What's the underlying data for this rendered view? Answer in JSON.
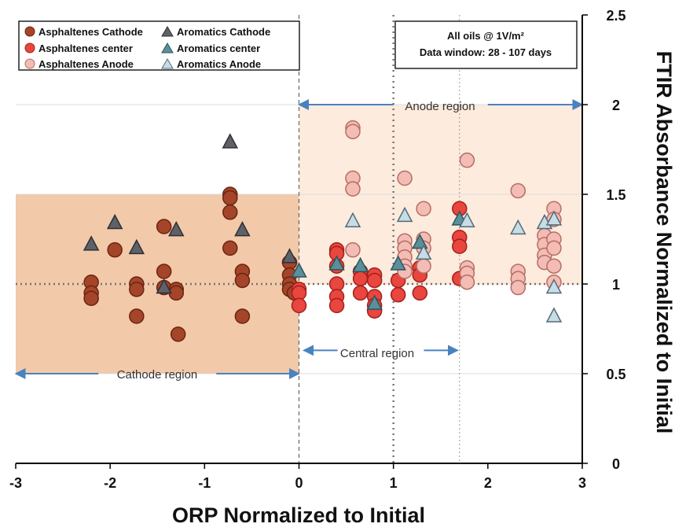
{
  "chart_data": {
    "type": "scatter",
    "xlabel": "ORP Normalized to Initial",
    "ylabel": "FTIR Absorbance Normalized to Initial",
    "xlim": [
      -3,
      3
    ],
    "ylim": [
      0,
      2.5
    ],
    "x_ticks": [
      "-3",
      "-2",
      "-1",
      "0",
      "1",
      "2",
      "3"
    ],
    "y_ticks": [
      "0",
      "0.5",
      "1",
      "1.5",
      "2",
      "2.5"
    ],
    "y_axis_side": "right",
    "grid": "horizontal",
    "legend_position": "top-left",
    "info_box": {
      "line1": "All oils @ 1V/m²",
      "line2": "Data window: 28  - 107 days"
    },
    "regions": [
      {
        "label": "Cathode region",
        "x_range": [
          -3,
          0
        ],
        "y_range": [
          0.5,
          1.5
        ],
        "fill": "#f2c9a9"
      },
      {
        "label": "Anode region",
        "x_range": [
          0,
          3
        ],
        "y_range": [
          1.0,
          2.0
        ],
        "fill": "#fdebdd"
      },
      {
        "label": "Central region",
        "x_range": [
          0,
          1.7
        ],
        "y_range": null,
        "fill": null
      }
    ],
    "reference_lines": {
      "y_dotted": 1.0,
      "x_dashed": [
        0
      ],
      "x_dotted_thick": [
        1.0
      ],
      "x_dotted_thin": [
        1.7
      ]
    },
    "series": [
      {
        "name": "Asphaltenes Cathode",
        "marker": "circle",
        "color": "#a4452a",
        "edge": "#6b2510",
        "points": [
          [
            -2.2,
            1.01
          ],
          [
            -2.2,
            0.95
          ],
          [
            -2.2,
            0.92
          ],
          [
            -1.95,
            1.19
          ],
          [
            -1.72,
            1.0
          ],
          [
            -1.72,
            0.97
          ],
          [
            -1.72,
            0.82
          ],
          [
            -1.43,
            1.32
          ],
          [
            -1.43,
            1.07
          ],
          [
            -1.43,
            0.98
          ],
          [
            -1.3,
            0.97
          ],
          [
            -1.3,
            0.95
          ],
          [
            -1.28,
            0.72
          ],
          [
            -0.73,
            1.5
          ],
          [
            -0.73,
            1.48
          ],
          [
            -0.73,
            1.4
          ],
          [
            -0.73,
            1.2
          ],
          [
            -0.6,
            1.07
          ],
          [
            -0.6,
            1.02
          ],
          [
            -0.6,
            0.82
          ],
          [
            -0.1,
            1.12
          ],
          [
            -0.1,
            1.05
          ],
          [
            -0.1,
            1.0
          ],
          [
            -0.1,
            0.97
          ],
          [
            -0.05,
            0.95
          ]
        ]
      },
      {
        "name": "Asphaltenes center",
        "marker": "circle",
        "color": "#e8463e",
        "edge": "#a3201c",
        "points": [
          [
            0.0,
            0.97
          ],
          [
            0.0,
            0.95
          ],
          [
            0.0,
            0.88
          ],
          [
            0.4,
            1.19
          ],
          [
            0.4,
            1.17
          ],
          [
            0.4,
            1.1
          ],
          [
            0.4,
            1.0
          ],
          [
            0.4,
            0.93
          ],
          [
            0.4,
            0.88
          ],
          [
            0.65,
            1.07
          ],
          [
            0.65,
            1.03
          ],
          [
            0.65,
            0.95
          ],
          [
            0.8,
            1.05
          ],
          [
            0.8,
            1.02
          ],
          [
            0.8,
            0.93
          ],
          [
            0.8,
            0.88
          ],
          [
            0.8,
            0.85
          ],
          [
            1.05,
            1.02
          ],
          [
            1.05,
            0.94
          ],
          [
            1.28,
            1.09
          ],
          [
            1.28,
            1.05
          ],
          [
            1.28,
            0.95
          ],
          [
            1.7,
            1.42
          ],
          [
            1.7,
            1.26
          ],
          [
            1.7,
            1.21
          ],
          [
            1.7,
            1.03
          ]
        ]
      },
      {
        "name": "Asphaltenes Anode",
        "marker": "circle",
        "color": "#f3bcb5",
        "edge": "#b66d63",
        "points": [
          [
            0.57,
            1.87
          ],
          [
            0.57,
            1.85
          ],
          [
            0.57,
            1.59
          ],
          [
            0.57,
            1.53
          ],
          [
            0.57,
            1.19
          ],
          [
            1.12,
            1.59
          ],
          [
            1.12,
            1.24
          ],
          [
            1.12,
            1.2
          ],
          [
            1.12,
            1.15
          ],
          [
            1.12,
            1.1
          ],
          [
            1.12,
            1.07
          ],
          [
            1.32,
            1.42
          ],
          [
            1.32,
            1.25
          ],
          [
            1.32,
            1.2
          ],
          [
            1.32,
            1.1
          ],
          [
            1.78,
            1.69
          ],
          [
            1.78,
            1.09
          ],
          [
            1.78,
            1.06
          ],
          [
            1.78,
            1.01
          ],
          [
            2.32,
            1.52
          ],
          [
            2.32,
            1.07
          ],
          [
            2.32,
            1.03
          ],
          [
            2.32,
            0.98
          ],
          [
            2.6,
            1.27
          ],
          [
            2.6,
            1.22
          ],
          [
            2.6,
            1.16
          ],
          [
            2.6,
            1.12
          ],
          [
            2.7,
            1.42
          ],
          [
            2.7,
            1.36
          ],
          [
            2.7,
            1.25
          ],
          [
            2.7,
            1.2
          ],
          [
            2.7,
            1.1
          ],
          [
            2.7,
            1.01
          ]
        ]
      },
      {
        "name": "Aromatics Cathode",
        "marker": "triangle",
        "color": "#5f6168",
        "edge": "#2f3035",
        "points": [
          [
            -2.2,
            1.22
          ],
          [
            -1.95,
            1.34
          ],
          [
            -1.72,
            1.2
          ],
          [
            -1.3,
            1.3
          ],
          [
            -1.43,
            0.98
          ],
          [
            -0.73,
            1.79
          ],
          [
            -0.6,
            1.3
          ],
          [
            -0.1,
            1.15
          ]
        ]
      },
      {
        "name": "Aromatics center",
        "marker": "triangle",
        "color": "#5b8f99",
        "edge": "#2a5560",
        "points": [
          [
            0.0,
            1.07
          ],
          [
            0.4,
            1.11
          ],
          [
            0.65,
            1.1
          ],
          [
            0.8,
            0.89
          ],
          [
            1.05,
            1.11
          ],
          [
            1.28,
            1.23
          ],
          [
            1.7,
            1.36
          ]
        ]
      },
      {
        "name": "Aromatics Anode",
        "marker": "triangle",
        "color": "#c8dce5",
        "edge": "#4f6b78",
        "points": [
          [
            0.57,
            1.35
          ],
          [
            1.12,
            1.38
          ],
          [
            1.32,
            1.17
          ],
          [
            1.78,
            1.35
          ],
          [
            2.32,
            1.31
          ],
          [
            2.6,
            1.34
          ],
          [
            2.7,
            1.36
          ],
          [
            2.7,
            0.98
          ],
          [
            2.7,
            0.82
          ]
        ]
      }
    ]
  }
}
